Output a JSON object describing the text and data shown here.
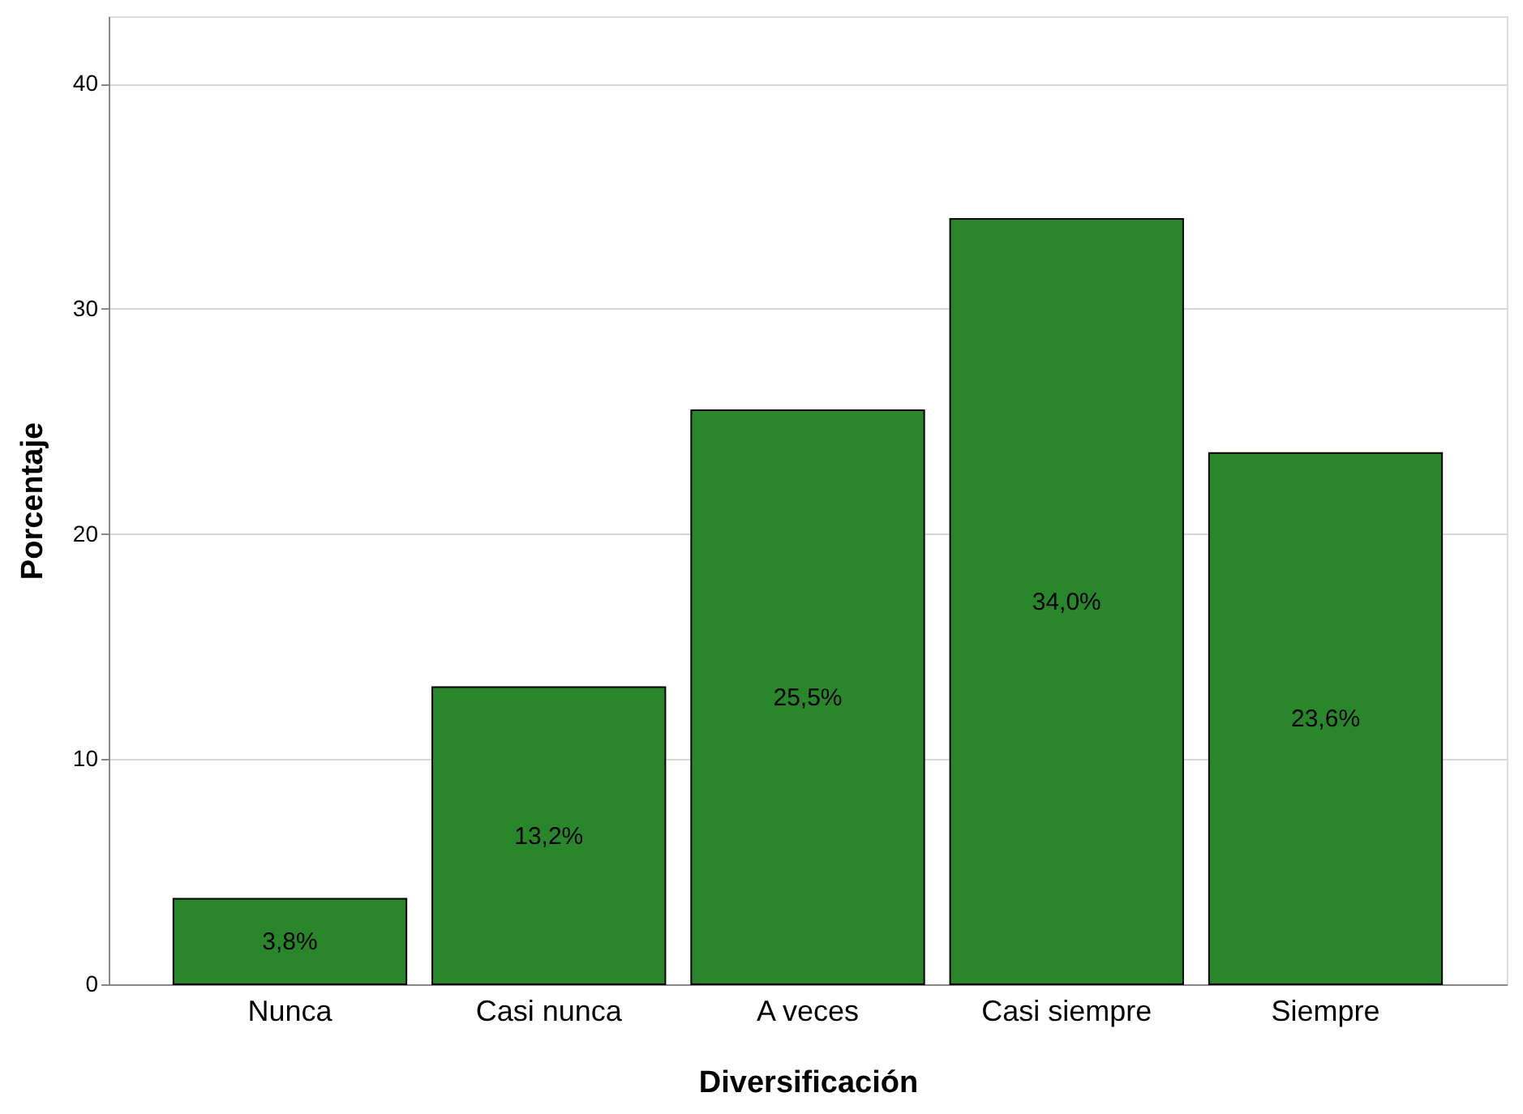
{
  "chart_data": {
    "type": "bar",
    "xlabel": "Diversificación",
    "ylabel": "Porcentaje",
    "categories": [
      "Nunca",
      "Casi nunca",
      "A veces",
      "Casi siempre",
      "Siempre"
    ],
    "values": [
      3.8,
      13.2,
      25.5,
      34.0,
      23.6
    ],
    "value_labels": [
      "3,8%",
      "13,2%",
      "25,5%",
      "34,0%",
      "23,6%"
    ],
    "color": "#2a862a",
    "ylim": [
      0,
      43
    ],
    "yticks": [
      0,
      10,
      20,
      30,
      40
    ],
    "grid": "y"
  }
}
